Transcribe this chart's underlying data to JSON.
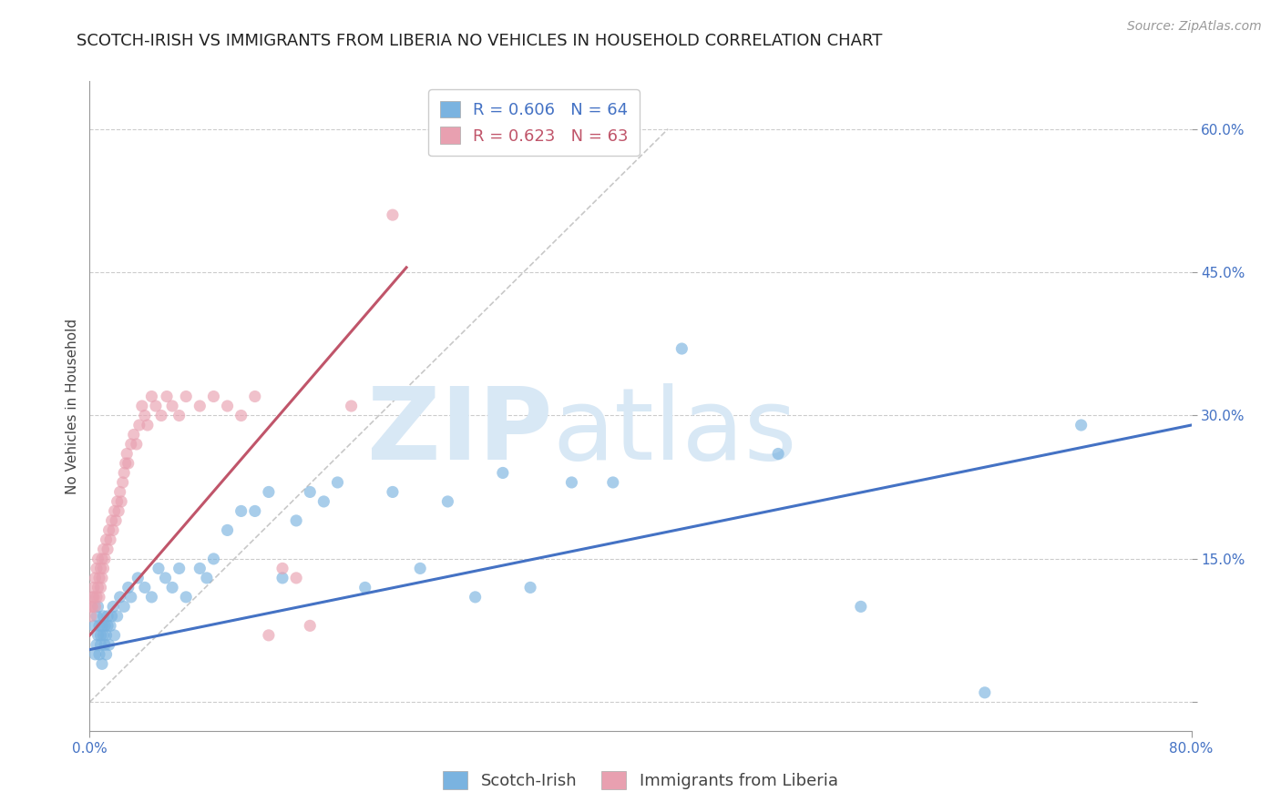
{
  "title": "SCOTCH-IRISH VS IMMIGRANTS FROM LIBERIA NO VEHICLES IN HOUSEHOLD CORRELATION CHART",
  "source": "Source: ZipAtlas.com",
  "ylabel": "No Vehicles in Household",
  "xlim": [
    0.0,
    0.8
  ],
  "ylim": [
    -0.03,
    0.65
  ],
  "xticks": [
    0.0,
    0.8
  ],
  "xticklabels": [
    "0.0%",
    "80.0%"
  ],
  "yticks": [
    0.0,
    0.15,
    0.3,
    0.45,
    0.6
  ],
  "yticklabels": [
    "",
    "15.0%",
    "30.0%",
    "45.0%",
    "60.0%"
  ],
  "grid_color": "#cccccc",
  "background_color": "#ffffff",
  "blue_color": "#7ab3e0",
  "pink_color": "#e8a0b0",
  "blue_line_color": "#4472c4",
  "pink_line_color": "#c0556a",
  "ref_line_color": "#c8c8c8",
  "legend_blue_label": "R = 0.606   N = 64",
  "legend_pink_label": "R = 0.623   N = 63",
  "scotch_irish_label": "Scotch-Irish",
  "liberia_label": "Immigrants from Liberia",
  "watermark_zip": "ZIP",
  "watermark_atlas": "atlas",
  "watermark_color": "#d8e8f5",
  "title_fontsize": 13,
  "axis_label_fontsize": 11,
  "tick_fontsize": 11,
  "legend_fontsize": 13,
  "source_fontsize": 10,
  "blue_scatter_x": [
    0.003,
    0.004,
    0.005,
    0.005,
    0.006,
    0.006,
    0.007,
    0.007,
    0.008,
    0.008,
    0.009,
    0.009,
    0.01,
    0.01,
    0.011,
    0.011,
    0.012,
    0.012,
    0.013,
    0.013,
    0.014,
    0.015,
    0.016,
    0.017,
    0.018,
    0.02,
    0.022,
    0.025,
    0.028,
    0.03,
    0.035,
    0.04,
    0.045,
    0.05,
    0.055,
    0.06,
    0.065,
    0.07,
    0.08,
    0.085,
    0.09,
    0.1,
    0.11,
    0.12,
    0.13,
    0.14,
    0.15,
    0.16,
    0.17,
    0.18,
    0.2,
    0.22,
    0.24,
    0.26,
    0.28,
    0.3,
    0.32,
    0.35,
    0.38,
    0.43,
    0.5,
    0.56,
    0.65,
    0.72
  ],
  "blue_scatter_y": [
    0.08,
    0.05,
    0.06,
    0.09,
    0.07,
    0.1,
    0.05,
    0.08,
    0.06,
    0.07,
    0.08,
    0.04,
    0.07,
    0.09,
    0.06,
    0.08,
    0.05,
    0.07,
    0.08,
    0.09,
    0.06,
    0.08,
    0.09,
    0.1,
    0.07,
    0.09,
    0.11,
    0.1,
    0.12,
    0.11,
    0.13,
    0.12,
    0.11,
    0.14,
    0.13,
    0.12,
    0.14,
    0.11,
    0.14,
    0.13,
    0.15,
    0.18,
    0.2,
    0.2,
    0.22,
    0.13,
    0.19,
    0.22,
    0.21,
    0.23,
    0.12,
    0.22,
    0.14,
    0.21,
    0.11,
    0.24,
    0.12,
    0.23,
    0.23,
    0.37,
    0.26,
    0.1,
    0.01,
    0.29
  ],
  "pink_scatter_x": [
    0.001,
    0.001,
    0.002,
    0.002,
    0.003,
    0.003,
    0.004,
    0.004,
    0.005,
    0.005,
    0.006,
    0.006,
    0.007,
    0.007,
    0.008,
    0.008,
    0.009,
    0.009,
    0.01,
    0.01,
    0.011,
    0.012,
    0.013,
    0.014,
    0.015,
    0.016,
    0.017,
    0.018,
    0.019,
    0.02,
    0.021,
    0.022,
    0.023,
    0.024,
    0.025,
    0.026,
    0.027,
    0.028,
    0.03,
    0.032,
    0.034,
    0.036,
    0.038,
    0.04,
    0.042,
    0.045,
    0.048,
    0.052,
    0.056,
    0.06,
    0.065,
    0.07,
    0.08,
    0.09,
    0.1,
    0.11,
    0.12,
    0.13,
    0.14,
    0.15,
    0.16,
    0.19,
    0.22
  ],
  "pink_scatter_y": [
    0.09,
    0.1,
    0.1,
    0.11,
    0.11,
    0.12,
    0.1,
    0.13,
    0.11,
    0.14,
    0.12,
    0.15,
    0.11,
    0.13,
    0.12,
    0.14,
    0.13,
    0.15,
    0.14,
    0.16,
    0.15,
    0.17,
    0.16,
    0.18,
    0.17,
    0.19,
    0.18,
    0.2,
    0.19,
    0.21,
    0.2,
    0.22,
    0.21,
    0.23,
    0.24,
    0.25,
    0.26,
    0.25,
    0.27,
    0.28,
    0.27,
    0.29,
    0.31,
    0.3,
    0.29,
    0.32,
    0.31,
    0.3,
    0.32,
    0.31,
    0.3,
    0.32,
    0.31,
    0.32,
    0.31,
    0.3,
    0.32,
    0.07,
    0.14,
    0.13,
    0.08,
    0.31,
    0.51
  ],
  "blue_trend_x": [
    0.0,
    0.8
  ],
  "blue_trend_y": [
    0.055,
    0.29
  ],
  "pink_trend_x": [
    0.0,
    0.23
  ],
  "pink_trend_y": [
    0.07,
    0.455
  ],
  "ref_line_x": [
    0.0,
    0.42
  ],
  "ref_line_y": [
    0.0,
    0.6
  ]
}
